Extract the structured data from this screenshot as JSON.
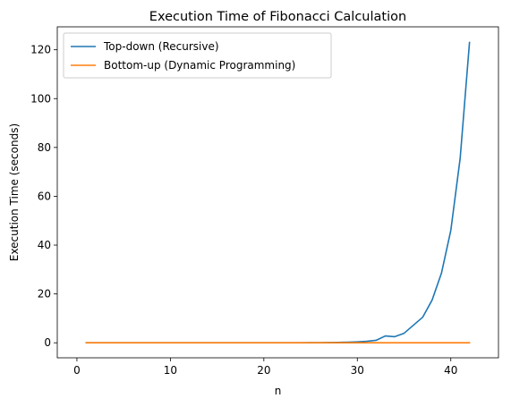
{
  "chart_data": {
    "type": "line",
    "title": "Execution Time of Fibonacci Calculation",
    "xlabel": "n",
    "ylabel": "Execution Time (seconds)",
    "xlim": [
      -2.1,
      45.1
    ],
    "ylim": [
      -6.15,
      129.4
    ],
    "xticks": [
      0,
      10,
      20,
      30,
      40
    ],
    "yticks": [
      0,
      20,
      40,
      60,
      80,
      100,
      120
    ],
    "grid": false,
    "legend_position": "upper-left",
    "series": [
      {
        "name": "Top-down (Recursive)",
        "color": "#1f77b4",
        "x": [
          1,
          2,
          3,
          4,
          5,
          6,
          7,
          8,
          9,
          10,
          11,
          12,
          13,
          14,
          15,
          16,
          17,
          18,
          19,
          20,
          21,
          22,
          23,
          24,
          25,
          26,
          27,
          28,
          29,
          30,
          31,
          32,
          33,
          34,
          35,
          36,
          37,
          38,
          39,
          40,
          41,
          42
        ],
        "y": [
          0,
          0,
          0,
          0,
          0,
          0,
          0,
          0,
          0,
          0,
          0,
          0,
          0,
          0,
          0,
          0,
          0,
          0,
          0,
          0,
          0,
          0.01,
          0.02,
          0.03,
          0.04,
          0.06,
          0.1,
          0.16,
          0.26,
          0.4,
          0.6,
          1.0,
          2.8,
          2.5,
          3.9,
          7.2,
          10.5,
          17.5,
          28.5,
          46.0,
          75.5,
          123.0
        ]
      },
      {
        "name": "Bottom-up (Dynamic Programming)",
        "color": "#ff7f0e",
        "x": [
          1,
          2,
          3,
          4,
          5,
          6,
          7,
          8,
          9,
          10,
          11,
          12,
          13,
          14,
          15,
          16,
          17,
          18,
          19,
          20,
          21,
          22,
          23,
          24,
          25,
          26,
          27,
          28,
          29,
          30,
          31,
          32,
          33,
          34,
          35,
          36,
          37,
          38,
          39,
          40,
          41,
          42
        ],
        "y": [
          0,
          0,
          0,
          0,
          0,
          0,
          0,
          0,
          0,
          0,
          0,
          0,
          0,
          0,
          0,
          0,
          0,
          0,
          0,
          0,
          0,
          0,
          0,
          0,
          0,
          0,
          0,
          0,
          0,
          0,
          0,
          0,
          0,
          0,
          0,
          0,
          0,
          0,
          0,
          0,
          0,
          0
        ]
      }
    ]
  }
}
